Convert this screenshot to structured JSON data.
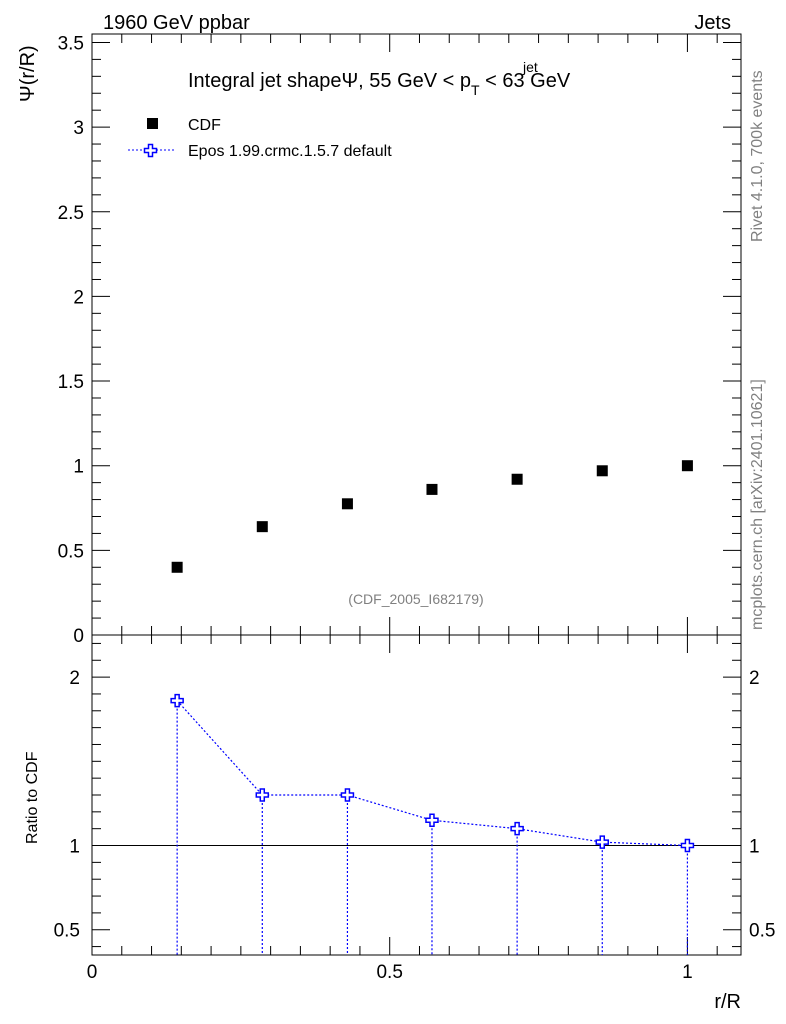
{
  "header": {
    "left": "1960 GeV ppbar",
    "right": "Jets"
  },
  "side_text": {
    "rivet": "Rivet 4.1.0,  700k events",
    "mcplots": "mcplots.cern.ch [arXiv:2401.10621]"
  },
  "chart_data": [
    {
      "type": "scatter",
      "title": "Integral jet shapeΨ, 55 GeV < p_T^jet < 63 GeV",
      "title_parts": {
        "main": "Integral jet shapeΨ, 55 GeV < p",
        "sup": "jet",
        "sub": "T",
        "tail": " < 63 GeV"
      },
      "ylabel": "Ψ(r/R)",
      "xlabel": "",
      "analysis_tag": "(CDF_2005_I682179)",
      "xlim": [
        0,
        1.09
      ],
      "ylim": [
        0,
        3.55
      ],
      "yticks": [
        0,
        0.5,
        1,
        1.5,
        2,
        2.5,
        3,
        3.5
      ],
      "ytick_labels": [
        "0",
        "0.5",
        "1",
        "1.5",
        "2",
        "2.5",
        "3",
        "3.5"
      ],
      "legend": {
        "placement": "top-left",
        "entries": [
          {
            "name": "CDF",
            "marker": "filled-square",
            "color": "#000000"
          },
          {
            "name": "Epos 1.99.crmc.1.5.7 default",
            "marker": "open-cross",
            "color": "#0000ff",
            "line": "dotted"
          }
        ]
      },
      "series": [
        {
          "name": "CDF",
          "x": [
            0.143,
            0.286,
            0.429,
            0.571,
            0.714,
            0.857,
            1.0
          ],
          "y": [
            0.4,
            0.64,
            0.775,
            0.86,
            0.92,
            0.97,
            1.0
          ]
        }
      ]
    },
    {
      "type": "line",
      "title": "",
      "ylabel": "Ratio to CDF",
      "xlabel": "r/R",
      "xlim": [
        0,
        1.09
      ],
      "ylim": [
        0.35,
        2.25
      ],
      "xticks": [
        0,
        0.5,
        1
      ],
      "xtick_labels": [
        "0",
        "0.5",
        "1"
      ],
      "yticks": [
        0.5,
        1,
        2
      ],
      "ytick_labels": [
        "0.5",
        "1",
        "2"
      ],
      "reference_line": 1,
      "series": [
        {
          "name": "Epos 1.99.crmc.1.5.7 default",
          "color": "#0000ff",
          "x": [
            0.143,
            0.286,
            0.429,
            0.571,
            0.714,
            0.857,
            1.0
          ],
          "y": [
            1.86,
            1.3,
            1.3,
            1.15,
            1.1,
            1.02,
            1.0
          ]
        }
      ]
    }
  ]
}
